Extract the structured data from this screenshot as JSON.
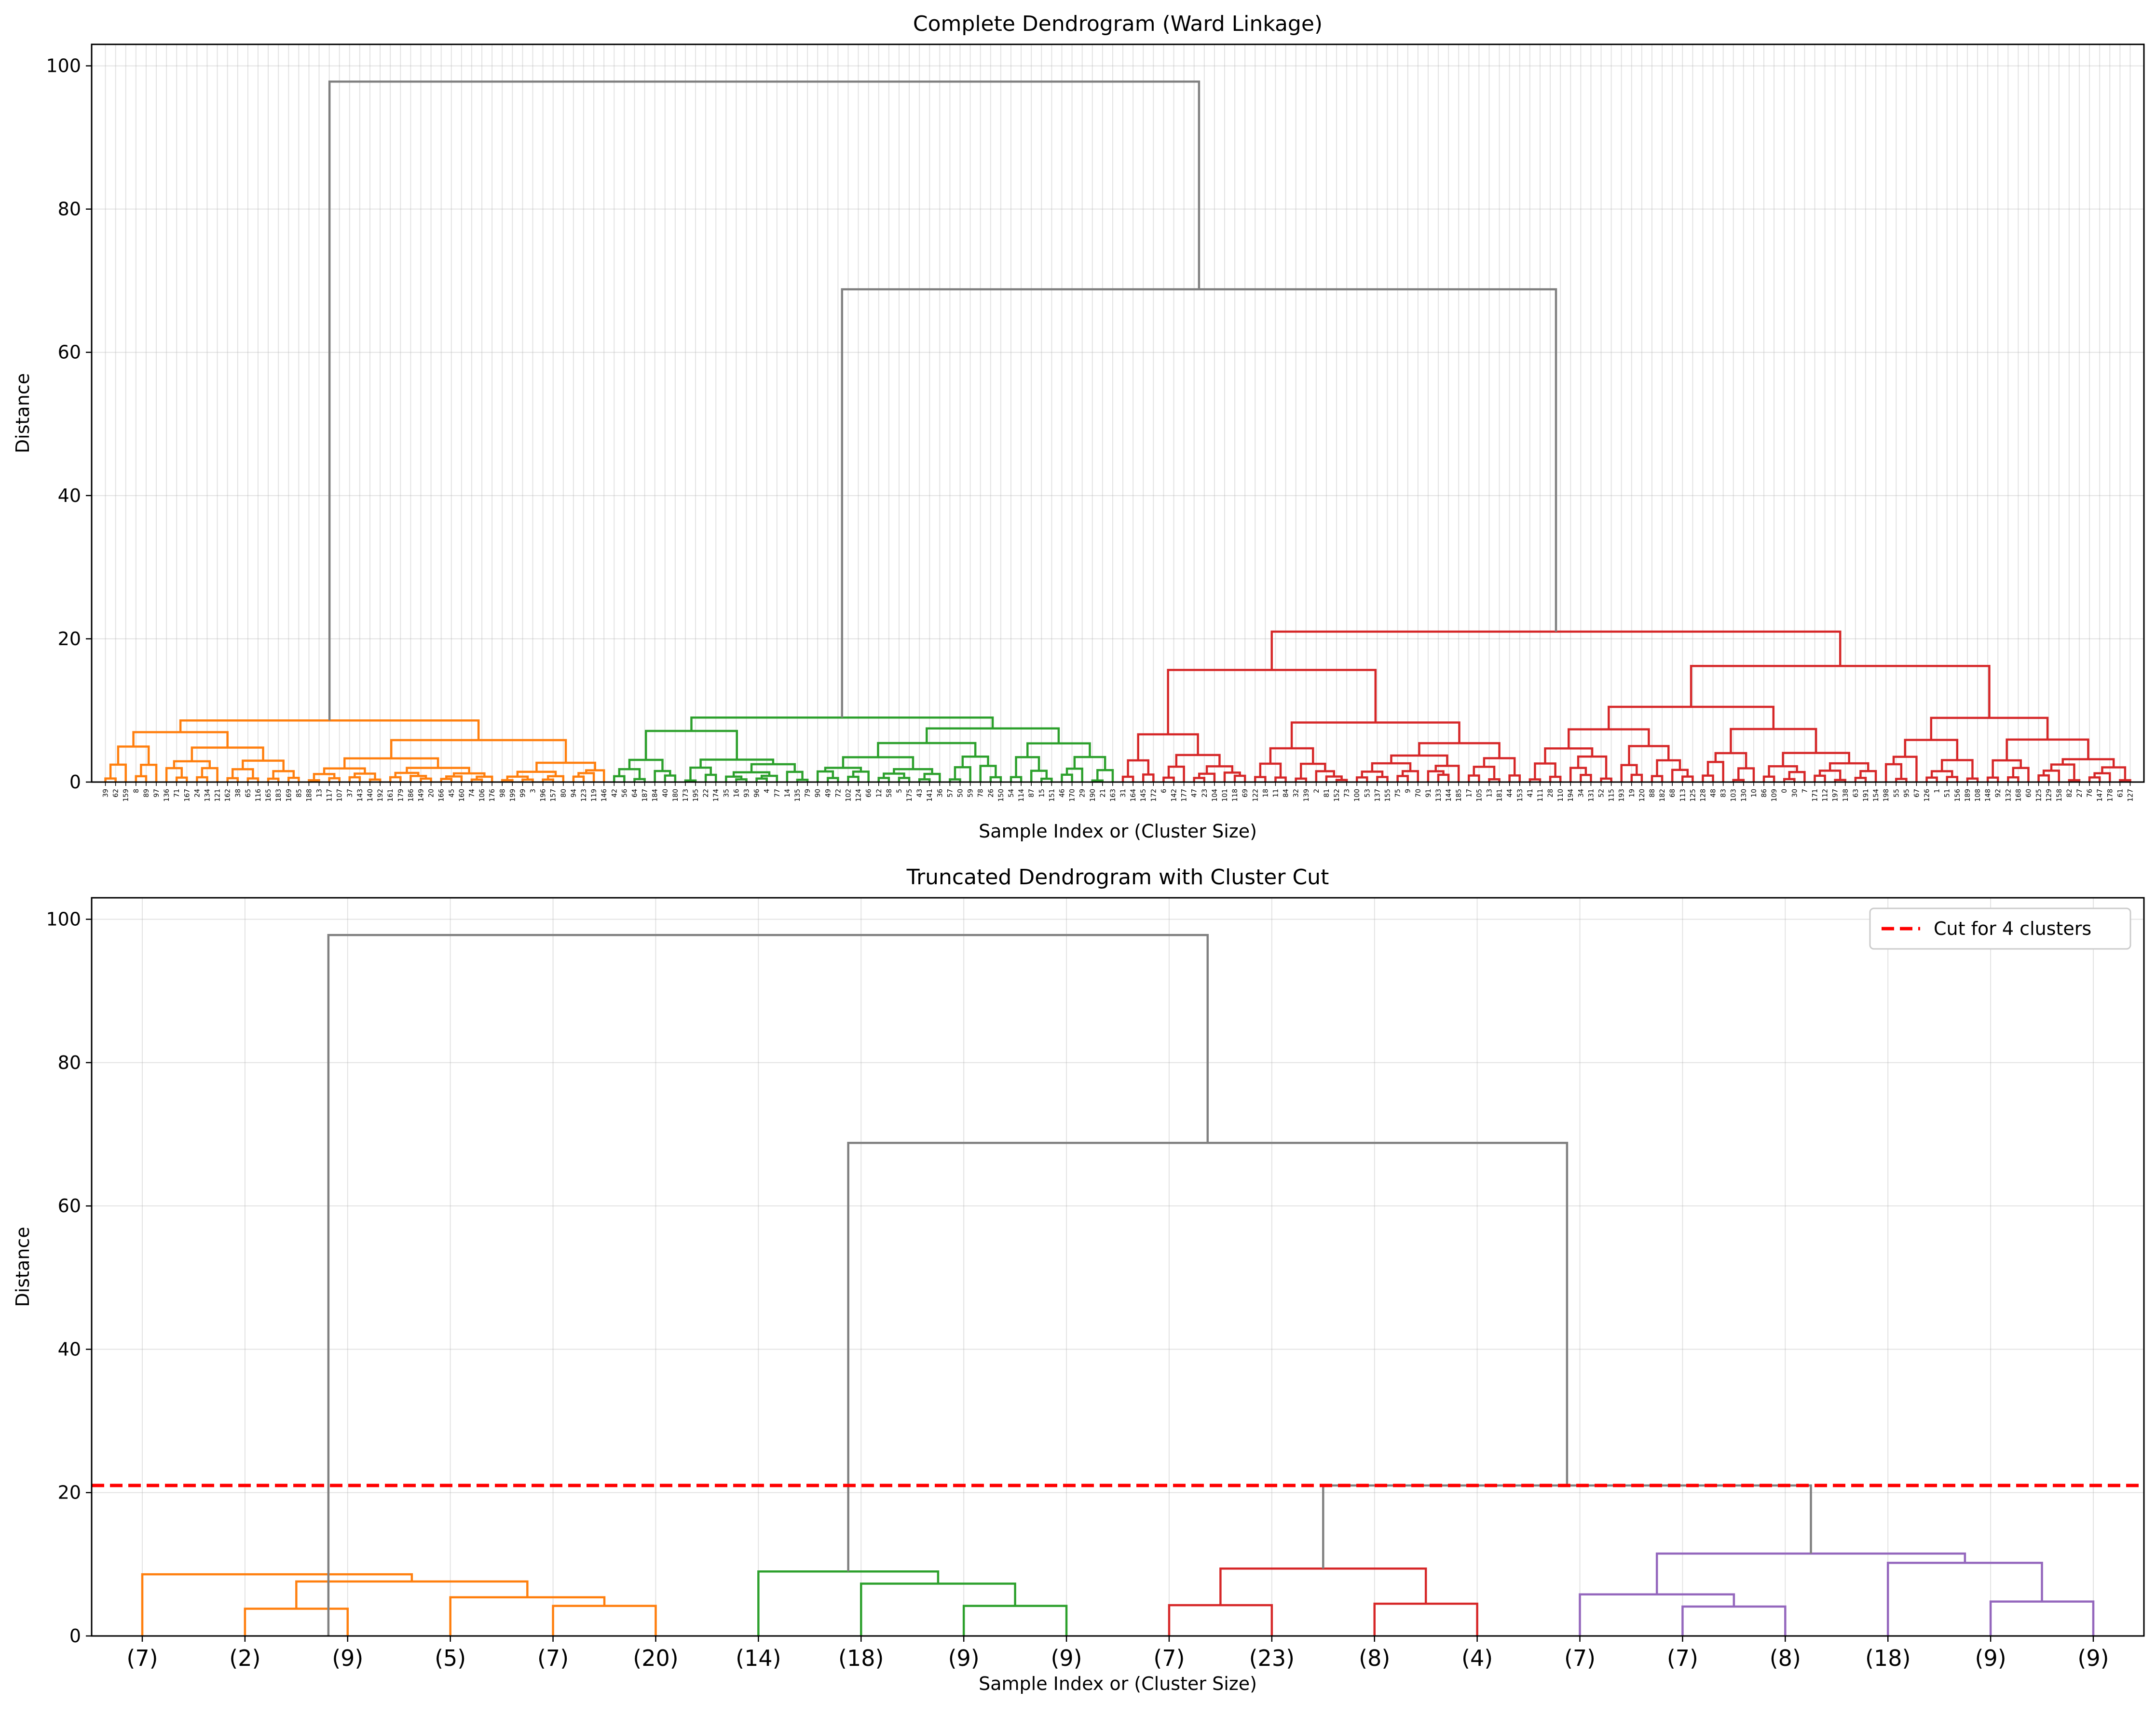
{
  "chart_data": [
    {
      "type": "dendrogram",
      "title": "Complete Dendrogram (Ward Linkage)",
      "xlabel": "Sample Index or (Cluster Size)",
      "ylabel": "Distance",
      "ylim": [
        0,
        103
      ],
      "yticks": [
        0,
        20,
        40,
        60,
        80,
        100
      ],
      "grid": true,
      "leaf_count": 200,
      "leaf_labels": [
        "39",
        "62",
        "159",
        "8",
        "89",
        "97",
        "136",
        "71",
        "167",
        "24",
        "134",
        "121",
        "162",
        "38",
        "65",
        "116",
        "165",
        "183",
        "169",
        "85",
        "188",
        "13",
        "117",
        "107",
        "37",
        "143",
        "140",
        "192",
        "161",
        "179",
        "186",
        "149",
        "20",
        "166",
        "45",
        "160",
        "74",
        "106",
        "176",
        "98",
        "199",
        "99",
        "3",
        "196",
        "157",
        "80",
        "94",
        "123",
        "119",
        "146",
        "42",
        "56",
        "64",
        "187",
        "184",
        "40",
        "180",
        "173",
        "195",
        "22",
        "174",
        "35",
        "16",
        "93",
        "96",
        "4",
        "77",
        "14",
        "135",
        "79",
        "90",
        "49",
        "72",
        "102",
        "124",
        "66",
        "12",
        "58",
        "5",
        "175",
        "43",
        "141",
        "36",
        "57",
        "50",
        "59",
        "78",
        "26",
        "150",
        "54",
        "114",
        "87",
        "15",
        "151",
        "46",
        "170",
        "29",
        "190",
        "21",
        "163",
        "31",
        "164",
        "145",
        "172",
        "6",
        "142",
        "177",
        "47",
        "23",
        "104",
        "101",
        "118",
        "69",
        "122",
        "18",
        "11",
        "84",
        "32",
        "139",
        "2",
        "81",
        "152",
        "73",
        "100",
        "53",
        "137",
        "155",
        "75",
        "9",
        "70",
        "91",
        "133",
        "144",
        "185",
        "17",
        "105",
        "13",
        "181",
        "44",
        "153",
        "41",
        "111",
        "28",
        "110",
        "194",
        "34",
        "131",
        "52",
        "115",
        "193",
        "19",
        "120",
        "88",
        "182",
        "68",
        "113",
        "125",
        "128",
        "48",
        "83",
        "103",
        "130",
        "10",
        "86",
        "109",
        "0",
        "30",
        "7",
        "171",
        "112",
        "197",
        "138",
        "63",
        "191",
        "154",
        "198",
        "55",
        "95",
        "67",
        "126",
        "1",
        "51",
        "156",
        "189",
        "108",
        "148",
        "92",
        "132",
        "168",
        "60",
        "125",
        "129",
        "158",
        "82",
        "27",
        "76",
        "147",
        "178",
        "61",
        "127"
      ],
      "merges": [
        {
          "label": "orange cluster",
          "color": "#ff7f0e",
          "left_leaf_span": [
            0,
            49
          ],
          "height": 8.6
        },
        {
          "label": "green cluster",
          "color": "#2ca02c",
          "left_leaf_span": [
            50,
            99
          ],
          "height": 9.0
        },
        {
          "label": "red cluster",
          "color": "#d62728",
          "left_leaf_span": [
            100,
            199
          ],
          "height": 21.0
        },
        {
          "label": "green+red",
          "color": "#808080",
          "height": 68.8
        },
        {
          "label": "root",
          "color": "#808080",
          "height": 97.8
        }
      ],
      "cluster_colors": [
        "#ff7f0e",
        "#2ca02c",
        "#d62728"
      ],
      "link_color_above_threshold": "#808080"
    },
    {
      "type": "dendrogram",
      "title": "Truncated Dendrogram with Cluster Cut",
      "xlabel": "Sample Index or (Cluster Size)",
      "ylabel": "Distance",
      "ylim": [
        0,
        103
      ],
      "yticks": [
        0,
        20,
        40,
        60,
        80,
        100
      ],
      "grid": true,
      "leaf_labels": [
        "(7)",
        "(2)",
        "(9)",
        "(5)",
        "(7)",
        "(20)",
        "(14)",
        "(18)",
        "(9)",
        "(9)",
        "(7)",
        "(23)",
        "(8)",
        "(4)",
        "(7)",
        "(7)",
        "(8)",
        "(18)",
        "(9)",
        "(9)"
      ],
      "links": [
        {
          "a": 4,
          "b": 5,
          "h": 4.2,
          "color": "#ff7f0e"
        },
        {
          "a": 3,
          "b": 4.5,
          "h": 5.4,
          "color": "#ff7f0e"
        },
        {
          "a": 1,
          "b": 2,
          "h": 3.8,
          "color": "#ff7f0e"
        },
        {
          "a": 1.5,
          "b": 3.75,
          "h": 7.6,
          "color": "#ff7f0e"
        },
        {
          "a": 0,
          "b": 2.625,
          "h": 8.6,
          "color": "#ff7f0e"
        },
        {
          "a": 8,
          "b": 9,
          "h": 4.2,
          "color": "#2ca02c"
        },
        {
          "a": 7,
          "b": 8.5,
          "h": 7.3,
          "color": "#2ca02c"
        },
        {
          "a": 6,
          "b": 7.75,
          "h": 9.0,
          "color": "#2ca02c"
        },
        {
          "a": 10,
          "b": 11,
          "h": 4.3,
          "color": "#d62728"
        },
        {
          "a": 12,
          "b": 13,
          "h": 4.5,
          "color": "#d62728"
        },
        {
          "a": 10.5,
          "b": 12.5,
          "h": 9.4,
          "color": "#d62728"
        },
        {
          "a": 15,
          "b": 16,
          "h": 4.1,
          "color": "#9467bd"
        },
        {
          "a": 14,
          "b": 15.5,
          "h": 5.8,
          "color": "#9467bd"
        },
        {
          "a": 18,
          "b": 19,
          "h": 4.8,
          "color": "#9467bd"
        },
        {
          "a": 17,
          "b": 18.5,
          "h": 10.2,
          "color": "#9467bd"
        },
        {
          "a": 14.75,
          "b": 17.75,
          "h": 11.5,
          "color": "#9467bd"
        },
        {
          "a": 11.5,
          "b": 16.25,
          "h": 21.0,
          "color": "#808080"
        },
        {
          "a": 6.875,
          "b": 13.875,
          "h": 68.8,
          "color": "#808080"
        },
        {
          "a": 1.8125,
          "b": 10.375,
          "h": 97.8,
          "color": "#808080"
        }
      ],
      "cut": {
        "y": 21.0,
        "color": "#ff0000",
        "style": "dashed",
        "label": "Cut for 4 clusters"
      },
      "legend_position": "top-right"
    }
  ]
}
